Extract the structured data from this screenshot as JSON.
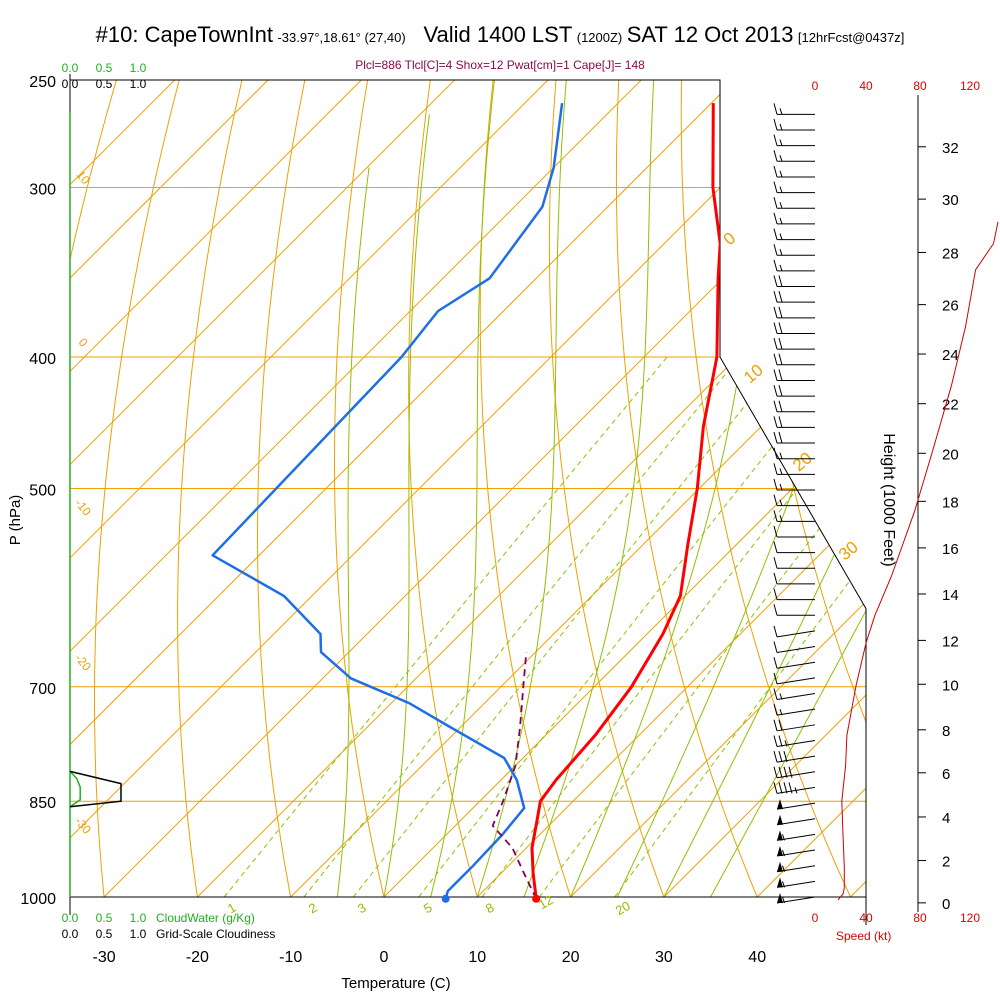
{
  "title": {
    "station": "#10: CapeTownInt",
    "location": "-33.97°,18.61° (27,40)",
    "valid": "Valid 1400 LST",
    "zulu": "(1200Z)",
    "date": "SAT 12 Oct 2013",
    "forecast": "[12hrFcst@0437z]"
  },
  "params_line": "Plcl=886 Tlcl[C]=4 Shox=12 Pwat[cm]=1 Cape[J]= 148",
  "colors": {
    "temperature": "#ff0000",
    "dewpoint": "#1e6fe6",
    "parcel": "#800060",
    "isotherm": "#f0a000",
    "dry_adiabat": "#f0a000",
    "moist_adiabat": "#90c000",
    "mixing_ratio": "#90c000",
    "cloud_water": "#20b020",
    "wind_speed": "#cc0000"
  },
  "labels": {
    "cloud_water": "CloudWater (g/Kg)",
    "cloudiness": "Grid-Scale Cloudiness",
    "speed": "Speed (kt)"
  },
  "chart_data": {
    "type": "line",
    "title": "#10: CapeTownInt Valid 1400 LST (1200Z) SAT 12 Oct 2013",
    "xlabel": "Temperature (C)",
    "ylabel": "P (hPa)",
    "y2label": "Height (1000 Feet)",
    "xlim": [
      -35,
      44
    ],
    "ylim_hPa": [
      1000,
      250
    ],
    "y_scale": "log",
    "x_ticks": [
      "-30",
      "-20",
      "-10",
      "0",
      "10",
      "20",
      "30",
      "40"
    ],
    "x_tick_values": [
      -30,
      -20,
      -10,
      0,
      10,
      20,
      30,
      40
    ],
    "pressure_ticks": [
      "250",
      "300",
      "400",
      "500",
      "700",
      "850",
      "1000"
    ],
    "pressure_values": [
      250,
      300,
      400,
      500,
      700,
      850,
      1000
    ],
    "height_ticks": [
      "0",
      "2",
      "4",
      "6",
      "8",
      "10",
      "12",
      "14",
      "16",
      "18",
      "20",
      "22",
      "24",
      "26",
      "28",
      "30",
      "32"
    ],
    "height_kft": [
      0,
      2,
      4,
      6,
      8,
      10,
      12,
      14,
      16,
      18,
      20,
      22,
      24,
      26,
      28,
      30,
      32
    ],
    "height_pressure": [
      1010,
      940,
      873,
      810,
      753,
      697,
      647,
      598,
      553,
      511,
      471,
      433,
      398,
      366,
      335,
      306,
      280
    ],
    "cloud_axis_labels": [
      "0.0",
      "0.5",
      "1.0"
    ],
    "speed_axis_labels": [
      "0",
      "40",
      "80",
      "120"
    ],
    "dry_adiabat_labels": [
      "0",
      "10",
      "20",
      "30"
    ],
    "moist_adiabat_labels": [
      "10",
      "0",
      "-10",
      "-20",
      "-30"
    ],
    "mixing_ratio_labels": [
      "1",
      "2",
      "3",
      "5",
      "8",
      "12",
      "20"
    ],
    "series": [
      {
        "name": "Temperature",
        "points": [
          {
            "p": 1003,
            "t": 16.5
          },
          {
            "p": 960,
            "t": 13.4
          },
          {
            "p": 920,
            "t": 10.6
          },
          {
            "p": 880,
            "t": 8.3
          },
          {
            "p": 850,
            "t": 6.5
          },
          {
            "p": 820,
            "t": 5.9
          },
          {
            "p": 760,
            "t": 5.3
          },
          {
            "p": 700,
            "t": 4.0
          },
          {
            "p": 640,
            "t": 1.7
          },
          {
            "p": 600,
            "t": -0.5
          },
          {
            "p": 550,
            "t": -5.2
          },
          {
            "p": 500,
            "t": -10.2
          },
          {
            "p": 450,
            "t": -16.2
          },
          {
            "p": 400,
            "t": -22.2
          },
          {
            "p": 350,
            "t": -30.5
          },
          {
            "p": 330,
            "t": -34.0
          },
          {
            "p": 300,
            "t": -40.8
          },
          {
            "p": 260,
            "t": -49.8
          }
        ]
      },
      {
        "name": "Dewpoint",
        "points": [
          {
            "p": 1003,
            "t": 6.8
          },
          {
            "p": 990,
            "t": 6.2
          },
          {
            "p": 950,
            "t": 6.2
          },
          {
            "p": 900,
            "t": 6.0
          },
          {
            "p": 860,
            "t": 5.5
          },
          {
            "p": 820,
            "t": 1.7
          },
          {
            "p": 790,
            "t": -2.0
          },
          {
            "p": 750,
            "t": -11.0
          },
          {
            "p": 720,
            "t": -18.0
          },
          {
            "p": 690,
            "t": -27.0
          },
          {
            "p": 660,
            "t": -33.0
          },
          {
            "p": 640,
            "t": -35.0
          },
          {
            "p": 600,
            "t": -43.0
          },
          {
            "p": 560,
            "t": -55.0
          },
          {
            "p": 400,
            "t": -56.0
          },
          {
            "p": 370,
            "t": -57.0
          },
          {
            "p": 350,
            "t": -55.0
          },
          {
            "p": 310,
            "t": -57.0
          },
          {
            "p": 290,
            "t": -60.0
          },
          {
            "p": 260,
            "t": -66.0
          }
        ]
      },
      {
        "name": "Parcel",
        "points": [
          {
            "p": 1003,
            "t": 16.5
          },
          {
            "p": 960,
            "t": 12.4
          },
          {
            "p": 920,
            "t": 8.5
          },
          {
            "p": 886,
            "t": 4.0
          },
          {
            "p": 850,
            "t": 2.5
          },
          {
            "p": 800,
            "t": 0.0
          },
          {
            "p": 750,
            "t": -3.6
          },
          {
            "p": 700,
            "t": -7.6
          },
          {
            "p": 660,
            "t": -11.0
          }
        ]
      }
    ],
    "surface_markers": [
      {
        "name": "Surface temperature",
        "p": 1003,
        "t": 16.5
      },
      {
        "name": "Surface dewpoint",
        "p": 1003,
        "t": 6.8
      }
    ],
    "cloud_water": [
      {
        "p": 858,
        "value": 0.0
      },
      {
        "p": 848,
        "value": 0.15
      },
      {
        "p": 830,
        "value": 0.15
      },
      {
        "p": 818,
        "value": 0.1
      },
      {
        "p": 808,
        "value": 0.0
      }
    ],
    "cloudiness": [
      {
        "p": 858,
        "value": 0.0
      },
      {
        "p": 850,
        "value": 0.75
      },
      {
        "p": 825,
        "value": 0.75
      },
      {
        "p": 808,
        "value": 0.0
      }
    ],
    "wind_speed_kt": [
      {
        "p": 1005,
        "speed": 18
      },
      {
        "p": 995,
        "speed": 22
      },
      {
        "p": 985,
        "speed": 23
      },
      {
        "p": 950,
        "speed": 23
      },
      {
        "p": 900,
        "speed": 22
      },
      {
        "p": 850,
        "speed": 21
      },
      {
        "p": 800,
        "speed": 24
      },
      {
        "p": 760,
        "speed": 25
      },
      {
        "p": 700,
        "speed": 32
      },
      {
        "p": 650,
        "speed": 40
      },
      {
        "p": 620,
        "speed": 47
      },
      {
        "p": 580,
        "speed": 60
      },
      {
        "p": 520,
        "speed": 78
      },
      {
        "p": 470,
        "speed": 92
      },
      {
        "p": 420,
        "speed": 107
      },
      {
        "p": 380,
        "speed": 118
      },
      {
        "p": 345,
        "speed": 126
      }
    ],
    "wind_barbs_speed_kt": [
      55,
      55,
      55,
      55,
      55,
      50,
      50,
      45,
      40,
      30,
      25,
      20,
      15,
      15,
      10,
      10,
      10,
      10,
      10,
      10,
      10,
      10,
      10,
      10,
      15,
      15,
      15,
      15,
      15,
      20,
      20,
      20,
      20,
      20,
      20,
      20,
      20,
      20,
      20,
      20,
      15,
      15,
      15,
      15,
      15,
      15,
      15,
      15,
      15,
      15,
      15
    ]
  }
}
